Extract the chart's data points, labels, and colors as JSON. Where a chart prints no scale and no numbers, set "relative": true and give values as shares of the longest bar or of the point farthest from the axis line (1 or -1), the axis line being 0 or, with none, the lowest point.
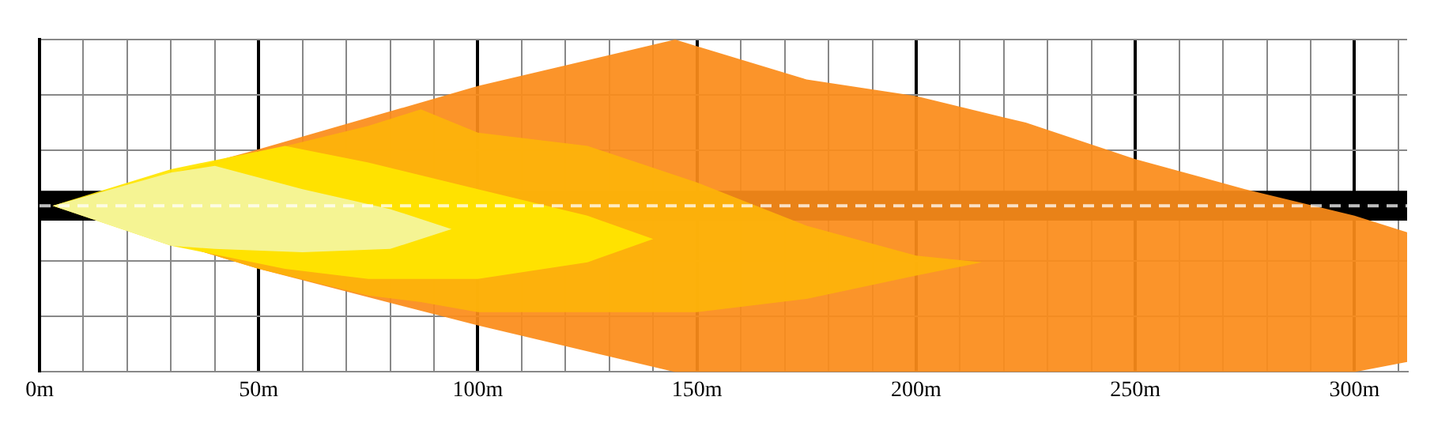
{
  "chart_data": {
    "type": "area",
    "relative": true,
    "xlim": [
      0,
      312
    ],
    "xticks": [
      {
        "value": 0,
        "label": "0m"
      },
      {
        "value": 10,
        "label": null
      },
      {
        "value": 20,
        "label": null
      },
      {
        "value": 30,
        "label": null
      },
      {
        "value": 40,
        "label": null
      },
      {
        "value": 50,
        "label": "50m"
      },
      {
        "value": 60,
        "label": null
      },
      {
        "value": 70,
        "label": null
      },
      {
        "value": 80,
        "label": null
      },
      {
        "value": 90,
        "label": null
      },
      {
        "value": 100,
        "label": "100m"
      },
      {
        "value": 110,
        "label": null
      },
      {
        "value": 120,
        "label": null
      },
      {
        "value": 130,
        "label": null
      },
      {
        "value": 140,
        "label": null
      },
      {
        "value": 150,
        "label": "150m"
      },
      {
        "value": 160,
        "label": null
      },
      {
        "value": 170,
        "label": null
      },
      {
        "value": 180,
        "label": null
      },
      {
        "value": 190,
        "label": null
      },
      {
        "value": 200,
        "label": "200m"
      },
      {
        "value": 210,
        "label": null
      },
      {
        "value": 220,
        "label": null
      },
      {
        "value": 230,
        "label": null
      },
      {
        "value": 240,
        "label": null
      },
      {
        "value": 250,
        "label": "250m"
      },
      {
        "value": 260,
        "label": null
      },
      {
        "value": 270,
        "label": null
      },
      {
        "value": 280,
        "label": null
      },
      {
        "value": 290,
        "label": null
      },
      {
        "value": 300,
        "label": "300m"
      },
      {
        "value": 310,
        "label": null
      }
    ],
    "grid": true,
    "legend": false,
    "bands": [
      {
        "axis": "y",
        "from": 0.455,
        "to": 0.545,
        "color": "#000000"
      }
    ],
    "ref_lines": [
      {
        "axis": "y",
        "value": 0.5,
        "color": "#ffffff",
        "line_style": "dashed"
      }
    ],
    "series": [
      {
        "color": "#fb8c1a",
        "x": [
          3,
          50,
          100,
          145,
          150,
          175,
          200,
          225,
          250,
          275,
          300,
          312,
          312,
          300,
          275,
          250,
          225,
          200,
          175,
          150,
          145,
          100,
          50
        ],
        "values": [
          0.5,
          0.67,
          0.86,
          1.0,
          0.98,
          0.88,
          0.83,
          0.75,
          0.64,
          0.55,
          0.47,
          0.42,
          0.03,
          0.0,
          0.0,
          0.0,
          0.0,
          0.0,
          0.0,
          0.0,
          0.0,
          0.14,
          0.31
        ]
      },
      {
        "color": "#fdb40a",
        "x": [
          3,
          50,
          75,
          87,
          100,
          125,
          150,
          175,
          200,
          215,
          200,
          175,
          150,
          125,
          100,
          87,
          75,
          50
        ],
        "values": [
          0.5,
          0.66,
          0.74,
          0.79,
          0.72,
          0.68,
          0.57,
          0.44,
          0.35,
          0.33,
          0.29,
          0.22,
          0.18,
          0.18,
          0.18,
          0.21,
          0.23,
          0.31
        ]
      },
      {
        "color": "#ffe500",
        "x": [
          3,
          30,
          56,
          75,
          100,
          125,
          140,
          125,
          100,
          75,
          56,
          30
        ],
        "values": [
          0.5,
          0.61,
          0.68,
          0.63,
          0.55,
          0.47,
          0.4,
          0.33,
          0.28,
          0.28,
          0.31,
          0.38
        ]
      },
      {
        "color": "#f4f59e",
        "x": [
          3,
          30,
          40,
          60,
          80,
          94,
          80,
          60,
          40,
          30
        ],
        "values": [
          0.5,
          0.6,
          0.62,
          0.55,
          0.49,
          0.43,
          0.37,
          0.36,
          0.37,
          0.38
        ]
      }
    ]
  }
}
